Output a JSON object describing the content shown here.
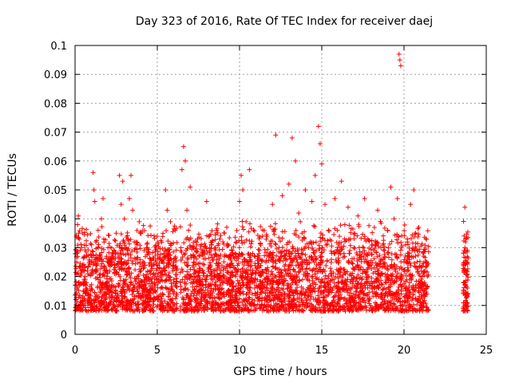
{
  "chart_data": {
    "type": "scatter",
    "title": "Day 323 of 2016, Rate Of TEC Index for receiver daej",
    "xlabel": "GPS time / hours",
    "ylabel": "ROTI / TECUs",
    "xlim": [
      0,
      25
    ],
    "ylim": [
      0,
      0.1
    ],
    "x_ticks": [
      0,
      5,
      10,
      15,
      20,
      25
    ],
    "x_tick_labels": [
      "0",
      "5",
      "10",
      "15",
      "20",
      "25"
    ],
    "y_ticks": [
      0,
      0.01,
      0.02,
      0.03,
      0.04,
      0.05,
      0.06,
      0.07,
      0.08,
      0.09,
      0.1
    ],
    "y_tick_labels": [
      "0",
      "0.01",
      "0.02",
      "0.03",
      "0.04",
      "0.05",
      "0.06",
      "0.07",
      "0.08",
      "0.09",
      "0.1"
    ],
    "grid": true,
    "marker": "plus",
    "color": "#ff0000",
    "points": [
      [
        0.05,
        0.012
      ],
      [
        0.1,
        0.025
      ],
      [
        0.15,
        0.038
      ],
      [
        0.2,
        0.041
      ],
      [
        0.25,
        0.018
      ],
      [
        0.3,
        0.009
      ],
      [
        0.35,
        0.022
      ],
      [
        0.4,
        0.03
      ],
      [
        0.5,
        0.015
      ],
      [
        0.6,
        0.02
      ],
      [
        0.7,
        0.027
      ],
      [
        0.8,
        0.014
      ],
      [
        0.9,
        0.011
      ],
      [
        1.0,
        0.031
      ],
      [
        1.1,
        0.056
      ],
      [
        1.15,
        0.05
      ],
      [
        1.2,
        0.046
      ],
      [
        1.3,
        0.024
      ],
      [
        1.4,
        0.036
      ],
      [
        1.5,
        0.018
      ],
      [
        1.6,
        0.04
      ],
      [
        1.7,
        0.047
      ],
      [
        1.8,
        0.022
      ],
      [
        1.9,
        0.013
      ],
      [
        2.0,
        0.03
      ],
      [
        2.1,
        0.017
      ],
      [
        2.2,
        0.025
      ],
      [
        2.3,
        0.009
      ],
      [
        2.4,
        0.021
      ],
      [
        2.5,
        0.035
      ],
      [
        2.6,
        0.028
      ],
      [
        2.7,
        0.055
      ],
      [
        2.8,
        0.045
      ],
      [
        2.9,
        0.053
      ],
      [
        3.0,
        0.04
      ],
      [
        3.1,
        0.019
      ],
      [
        3.2,
        0.033
      ],
      [
        3.3,
        0.047
      ],
      [
        3.4,
        0.055
      ],
      [
        3.5,
        0.043
      ],
      [
        3.6,
        0.032
      ],
      [
        3.7,
        0.026
      ],
      [
        3.8,
        0.015
      ],
      [
        3.9,
        0.039
      ],
      [
        4.0,
        0.022
      ],
      [
        4.2,
        0.018
      ],
      [
        4.4,
        0.03
      ],
      [
        4.6,
        0.012
      ],
      [
        4.8,
        0.024
      ],
      [
        5.0,
        0.02
      ],
      [
        5.2,
        0.016
      ],
      [
        5.4,
        0.028
      ],
      [
        5.5,
        0.05
      ],
      [
        5.6,
        0.043
      ],
      [
        5.8,
        0.039
      ],
      [
        6.0,
        0.014
      ],
      [
        6.2,
        0.009
      ],
      [
        6.4,
        0.018
      ],
      [
        6.5,
        0.057
      ],
      [
        6.6,
        0.065
      ],
      [
        6.7,
        0.06
      ],
      [
        6.8,
        0.043
      ],
      [
        6.9,
        0.036
      ],
      [
        7.0,
        0.051
      ],
      [
        7.2,
        0.025
      ],
      [
        7.4,
        0.031
      ],
      [
        7.6,
        0.022
      ],
      [
        7.8,
        0.017
      ],
      [
        8.0,
        0.046
      ],
      [
        8.2,
        0.029
      ],
      [
        8.4,
        0.011
      ],
      [
        8.6,
        0.036
      ],
      [
        8.8,
        0.033
      ],
      [
        9.0,
        0.02
      ],
      [
        9.2,
        0.014
      ],
      [
        9.4,
        0.027
      ],
      [
        9.6,
        0.018
      ],
      [
        9.8,
        0.032
      ],
      [
        10.0,
        0.046
      ],
      [
        10.1,
        0.055
      ],
      [
        10.2,
        0.05
      ],
      [
        10.4,
        0.039
      ],
      [
        10.6,
        0.057
      ],
      [
        10.8,
        0.028
      ],
      [
        11.0,
        0.021
      ],
      [
        11.2,
        0.016
      ],
      [
        11.4,
        0.034
      ],
      [
        11.6,
        0.025
      ],
      [
        11.8,
        0.019
      ],
      [
        12.0,
        0.045
      ],
      [
        12.2,
        0.069
      ],
      [
        12.4,
        0.03
      ],
      [
        12.6,
        0.048
      ],
      [
        12.8,
        0.022
      ],
      [
        13.0,
        0.052
      ],
      [
        13.2,
        0.068
      ],
      [
        13.4,
        0.06
      ],
      [
        13.6,
        0.042
      ],
      [
        13.8,
        0.035
      ],
      [
        14.0,
        0.05
      ],
      [
        14.2,
        0.03
      ],
      [
        14.4,
        0.046
      ],
      [
        14.6,
        0.055
      ],
      [
        14.8,
        0.072
      ],
      [
        14.9,
        0.066
      ],
      [
        15.0,
        0.059
      ],
      [
        15.2,
        0.045
      ],
      [
        15.4,
        0.036
      ],
      [
        15.6,
        0.028
      ],
      [
        15.8,
        0.047
      ],
      [
        16.0,
        0.022
      ],
      [
        16.2,
        0.053
      ],
      [
        16.4,
        0.038
      ],
      [
        16.6,
        0.044
      ],
      [
        16.8,
        0.019
      ],
      [
        17.0,
        0.035
      ],
      [
        17.2,
        0.041
      ],
      [
        17.4,
        0.027
      ],
      [
        17.6,
        0.047
      ],
      [
        17.8,
        0.033
      ],
      [
        18.0,
        0.024
      ],
      [
        18.2,
        0.037
      ],
      [
        18.4,
        0.043
      ],
      [
        18.6,
        0.03
      ],
      [
        18.8,
        0.016
      ],
      [
        19.0,
        0.036
      ],
      [
        19.2,
        0.051
      ],
      [
        19.4,
        0.04
      ],
      [
        19.6,
        0.047
      ],
      [
        19.7,
        0.097
      ],
      [
        19.75,
        0.095
      ],
      [
        19.8,
        0.093
      ],
      [
        20.0,
        0.025
      ],
      [
        20.2,
        0.033
      ],
      [
        20.4,
        0.045
      ],
      [
        20.6,
        0.05
      ],
      [
        20.8,
        0.029
      ],
      [
        21.0,
        0.018
      ],
      [
        21.2,
        0.027
      ],
      [
        21.4,
        0.014
      ],
      [
        23.7,
        0.044
      ],
      [
        23.75,
        0.032
      ],
      [
        23.8,
        0.025
      ],
      [
        23.85,
        0.016
      ],
      [
        23.8,
        0.011
      ],
      [
        23.75,
        0.022
      ],
      [
        23.7,
        0.03
      ],
      [
        23.8,
        0.013
      ]
    ],
    "dense_band": {
      "note": "Dense clusters of points in ROTI range 0.005-0.035 across segments",
      "segments": [
        [
          0,
          6.2
        ],
        [
          6.4,
          21.5
        ],
        [
          23.6,
          23.9
        ]
      ],
      "y_range": [
        0.004,
        0.036
      ]
    }
  }
}
